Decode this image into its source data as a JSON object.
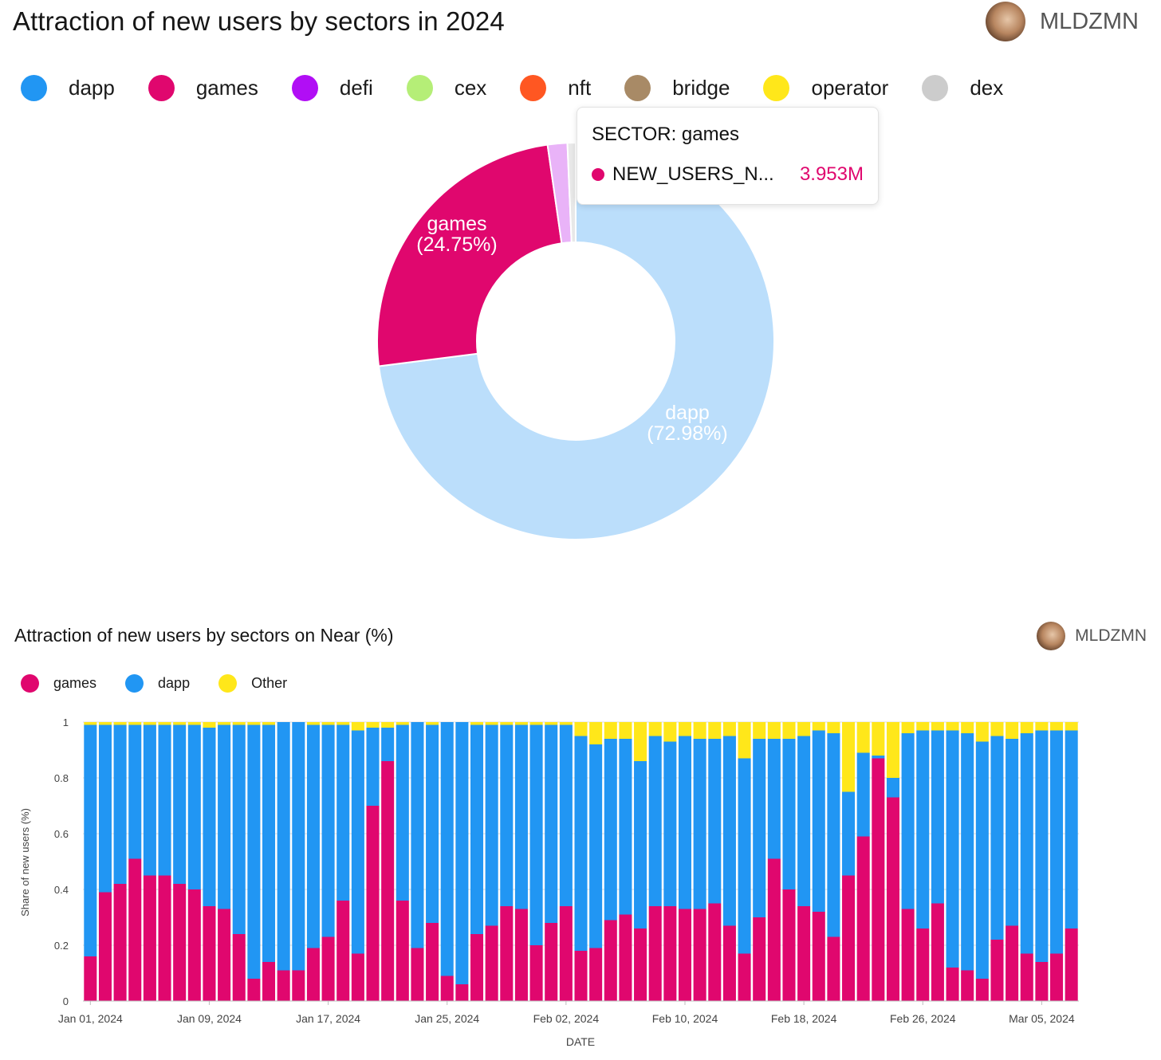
{
  "top": {
    "title": "Attraction of new users by sectors in 2024",
    "author": "MLDZMN",
    "legend": [
      {
        "label": "dapp",
        "color": "#2196f3"
      },
      {
        "label": "games",
        "color": "#e0076e"
      },
      {
        "label": "defi",
        "color": "#b10ef5"
      },
      {
        "label": "cex",
        "color": "#b5ee77"
      },
      {
        "label": "nft",
        "color": "#ff5722"
      },
      {
        "label": "bridge",
        "color": "#a88a66"
      },
      {
        "label": "operator",
        "color": "#ffe71a"
      },
      {
        "label": "dex",
        "color": "#cccccc"
      }
    ],
    "tooltip": {
      "header": "SECTOR: games",
      "series_label": "NEW_USERS_N...",
      "value": "3.953M"
    },
    "slice_labels": {
      "games_name": "games",
      "games_pct": "(24.75%)",
      "dapp_name": "dapp",
      "dapp_pct": "(72.98%)"
    }
  },
  "bottom": {
    "title": "Attraction of new users by sectors on Near (%)",
    "author": "MLDZMN",
    "legend": [
      {
        "label": "games",
        "color": "#e0076e"
      },
      {
        "label": "dapp",
        "color": "#2196f3"
      },
      {
        "label": "Other",
        "color": "#ffe71a"
      }
    ]
  },
  "chart_data": [
    {
      "type": "pie",
      "title": "Attraction of new users by sectors in 2024",
      "hole": true,
      "slices": [
        {
          "label": "dapp",
          "percent": 72.98,
          "color": "#bbdefb"
        },
        {
          "label": "games",
          "percent": 24.75,
          "color": "#e0076e"
        },
        {
          "label": "defi",
          "percent": 1.6,
          "color": "#e9b3f8"
        },
        {
          "label": "other",
          "percent": 0.67,
          "color": "#e8e8e8"
        }
      ]
    },
    {
      "type": "bar",
      "stacked": true,
      "title": "Attraction of new users by sectors on Near (%)",
      "xlabel": "DATE",
      "ylabel": "Share of new users (%)",
      "ylim": [
        0,
        1
      ],
      "yticks": [
        "0",
        "0.2",
        "0.4",
        "0.6",
        "0.8",
        "1"
      ],
      "xticks": [
        "Jan 01, 2024",
        "Jan 09, 2024",
        "Jan 17, 2024",
        "Jan 25, 2024",
        "Feb 02, 2024",
        "Feb 10, 2024",
        "Feb 18, 2024",
        "Feb 26, 2024",
        "Mar 05, 2024"
      ],
      "grid": true,
      "series": [
        {
          "name": "games",
          "color": "#e0076e",
          "values": [
            0.16,
            0.39,
            0.42,
            0.51,
            0.45,
            0.45,
            0.42,
            0.4,
            0.34,
            0.33,
            0.24,
            0.08,
            0.14,
            0.11,
            0.11,
            0.19,
            0.23,
            0.36,
            0.17,
            0.7,
            0.86,
            0.36,
            0.19,
            0.28,
            0.09,
            0.06,
            0.24,
            0.27,
            0.34,
            0.33,
            0.2,
            0.28,
            0.34,
            0.18,
            0.19,
            0.29,
            0.31,
            0.26,
            0.34,
            0.34,
            0.33,
            0.33,
            0.35,
            0.27,
            0.17,
            0.3,
            0.51,
            0.4,
            0.34,
            0.32,
            0.23,
            0.45,
            0.59,
            0.87,
            0.73,
            0.33,
            0.26,
            0.35,
            0.12,
            0.11,
            0.08,
            0.22,
            0.27,
            0.17,
            0.14,
            0.17,
            0.26
          ]
        },
        {
          "name": "dapp",
          "color": "#2196f3",
          "values": [
            0.83,
            0.6,
            0.57,
            0.48,
            0.54,
            0.54,
            0.57,
            0.59,
            0.64,
            0.66,
            0.75,
            0.91,
            0.85,
            0.89,
            0.89,
            0.8,
            0.76,
            0.63,
            0.8,
            0.28,
            0.12,
            0.63,
            0.81,
            0.71,
            0.91,
            0.94,
            0.75,
            0.72,
            0.65,
            0.66,
            0.79,
            0.71,
            0.65,
            0.77,
            0.73,
            0.65,
            0.63,
            0.6,
            0.61,
            0.59,
            0.62,
            0.61,
            0.59,
            0.68,
            0.7,
            0.64,
            0.43,
            0.54,
            0.61,
            0.65,
            0.73,
            0.3,
            0.3,
            0.01,
            0.07,
            0.63,
            0.71,
            0.62,
            0.85,
            0.85,
            0.85,
            0.73,
            0.67,
            0.79,
            0.83,
            0.8,
            0.71
          ]
        },
        {
          "name": "Other",
          "color": "#ffe71a",
          "values": [
            0.01,
            0.01,
            0.01,
            0.01,
            0.01,
            0.01,
            0.01,
            0.01,
            0.02,
            0.01,
            0.01,
            0.01,
            0.01,
            0.0,
            0.0,
            0.01,
            0.01,
            0.01,
            0.03,
            0.02,
            0.02,
            0.01,
            0.0,
            0.01,
            0.0,
            0.0,
            0.01,
            0.01,
            0.01,
            0.01,
            0.01,
            0.01,
            0.01,
            0.05,
            0.08,
            0.06,
            0.06,
            0.14,
            0.05,
            0.07,
            0.05,
            0.06,
            0.06,
            0.05,
            0.13,
            0.06,
            0.06,
            0.06,
            0.05,
            0.03,
            0.04,
            0.25,
            0.11,
            0.12,
            0.2,
            0.04,
            0.03,
            0.03,
            0.03,
            0.04,
            0.07,
            0.05,
            0.06,
            0.04,
            0.03,
            0.03,
            0.03
          ]
        }
      ]
    }
  ]
}
